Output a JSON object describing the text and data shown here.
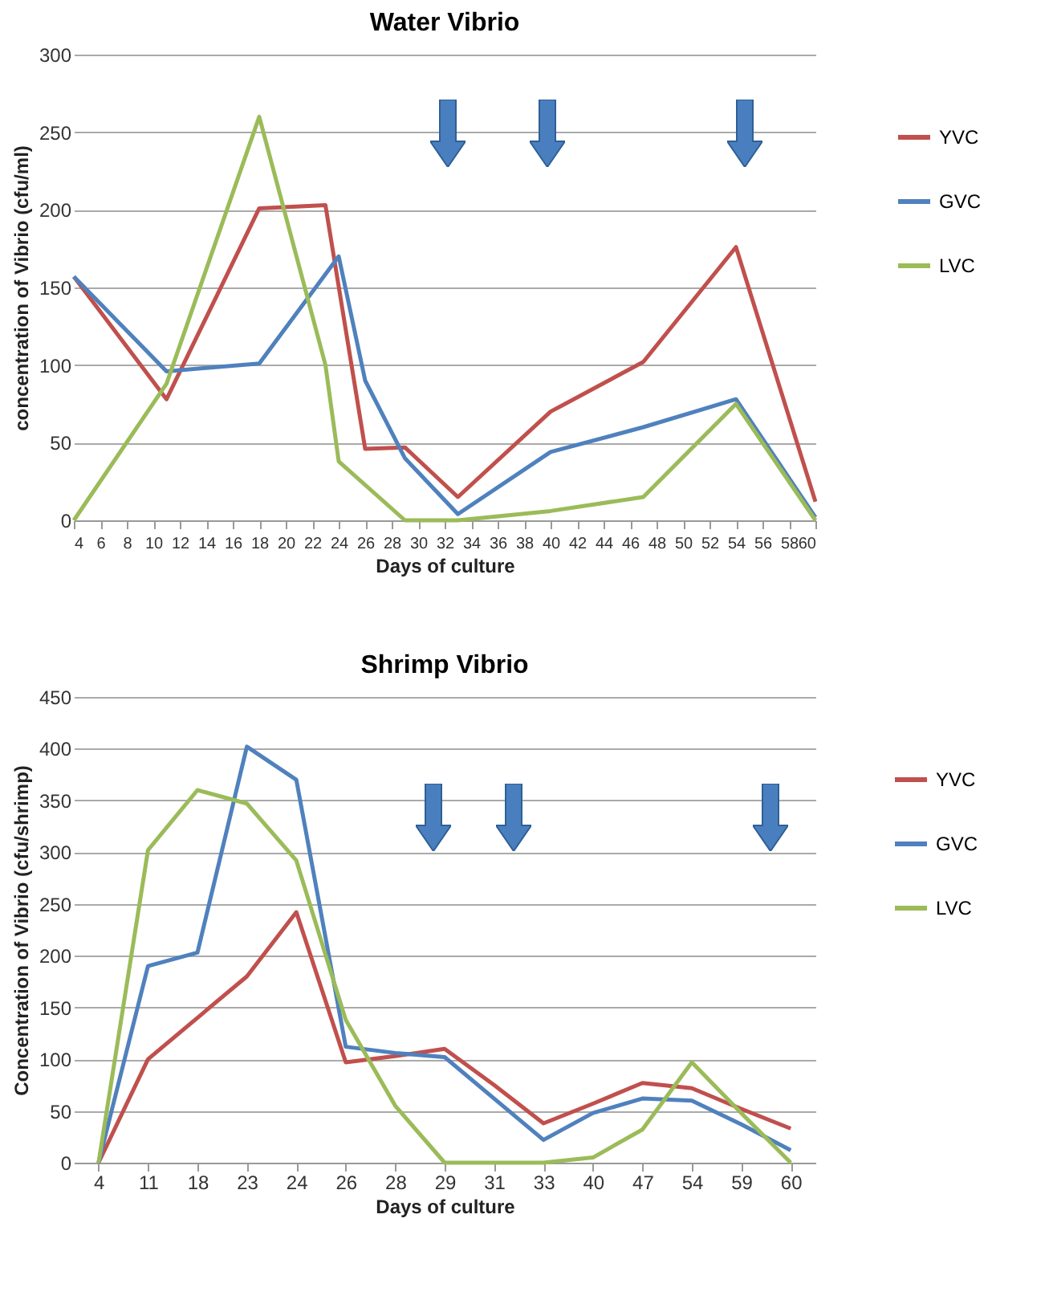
{
  "chart_data": [
    {
      "type": "line",
      "title": "Water Vibrio",
      "xlabel": "Days of culture",
      "ylabel": "concentration of Vibrio (cfu/ml)",
      "xlim": [
        4,
        60
      ],
      "xticks": [
        4,
        6,
        8,
        10,
        12,
        14,
        16,
        18,
        20,
        22,
        24,
        26,
        28,
        30,
        32,
        34,
        36,
        38,
        40,
        42,
        44,
        46,
        48,
        50,
        52,
        54,
        56,
        58,
        60
      ],
      "ylim": [
        0,
        300
      ],
      "yticks": [
        0,
        50,
        100,
        150,
        200,
        250,
        300
      ],
      "grid": "y",
      "legend": "right",
      "series": [
        {
          "name": "YVC",
          "color": "#c0504d",
          "x": [
            4,
            11,
            18,
            23,
            26,
            29,
            33,
            40,
            47,
            54,
            60
          ],
          "values": [
            157,
            78,
            201,
            203,
            46,
            47,
            15,
            70,
            102,
            176,
            12
          ]
        },
        {
          "name": "GVC",
          "color": "#4f81bd",
          "x": [
            4,
            11,
            18,
            24,
            26,
            29,
            33,
            40,
            47,
            54,
            60
          ],
          "values": [
            157,
            96,
            101,
            170,
            90,
            40,
            4,
            44,
            60,
            78,
            2
          ]
        },
        {
          "name": "LVC",
          "color": "#9bbb59",
          "x": [
            4,
            11,
            18,
            23,
            24,
            29,
            33,
            40,
            47,
            54,
            60
          ],
          "values": [
            0,
            88,
            260,
            100,
            38,
            0,
            0,
            6,
            15,
            75,
            0
          ]
        }
      ]
    },
    {
      "type": "line",
      "title": "Shrimp Vibrio",
      "xlabel": "Days of culture",
      "ylabel": "Concentration of Vibrio (cfu/shrimp)",
      "categories": [
        "4",
        "11",
        "18",
        "23",
        "24",
        "26",
        "28",
        "29",
        "31",
        "33",
        "40",
        "47",
        "54",
        "59",
        "60"
      ],
      "ylim": [
        0,
        450
      ],
      "yticks": [
        0,
        50,
        100,
        150,
        200,
        250,
        300,
        350,
        400,
        450
      ],
      "grid": "y",
      "legend": "right",
      "series": [
        {
          "name": "YVC",
          "color": "#c0504d",
          "values": [
            0,
            100,
            140,
            180,
            242,
            97,
            103,
            110,
            75,
            38,
            57,
            77,
            72,
            52,
            33
          ]
        },
        {
          "name": "GVC",
          "color": "#4f81bd",
          "values": [
            0,
            190,
            203,
            402,
            370,
            112,
            106,
            102,
            62,
            22,
            48,
            62,
            60,
            37,
            12
          ]
        },
        {
          "name": "LVC",
          "color": "#9bbb59",
          "values": [
            0,
            302,
            360,
            347,
            292,
            138,
            55,
            0,
            0,
            0,
            5,
            32,
            97,
            48,
            0
          ]
        }
      ]
    }
  ]
}
